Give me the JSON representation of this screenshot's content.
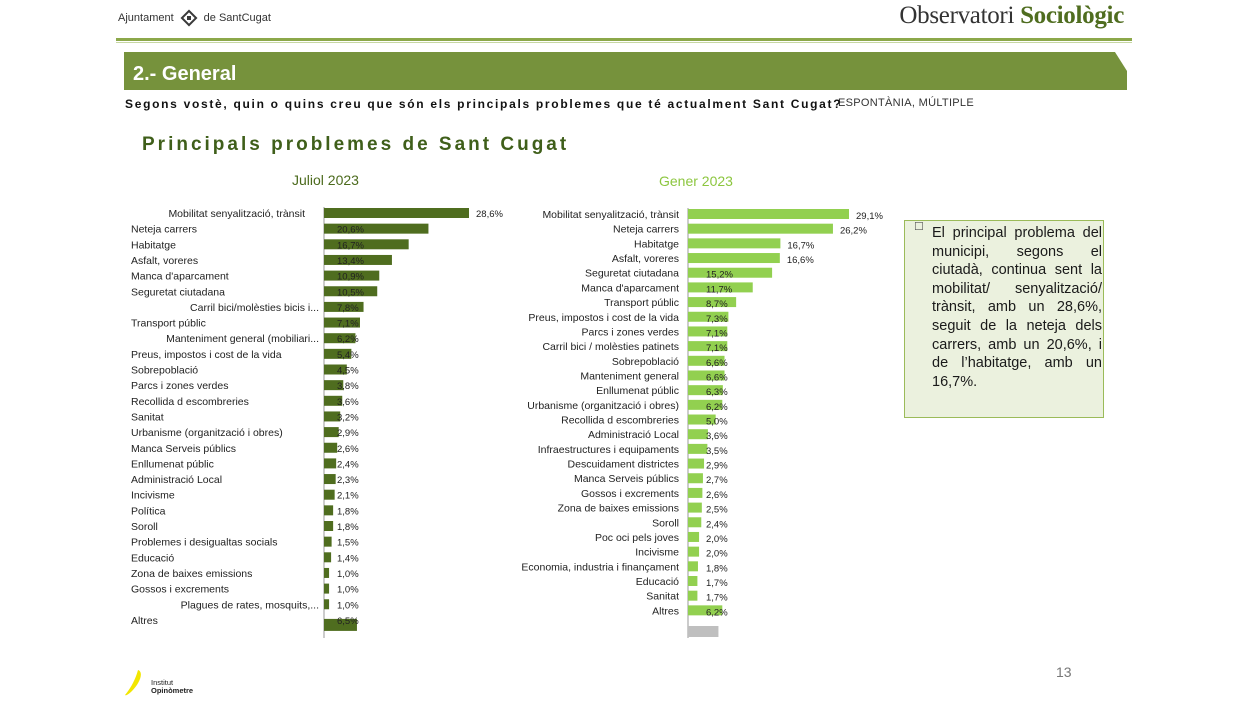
{
  "header": {
    "left_logo_text_1": "Ajuntament",
    "left_logo_text_2": "de SantCugat",
    "brand_light": "Observatori",
    "brand_bold": "Sociològic"
  },
  "section_title": "2.- General",
  "question": "Segons vostè, quin o quins creu que són els principals problemes que té actualment Sant Cugat?",
  "question_type": "ESPONTÀNIA, MÚLTIPLE",
  "chart_title": "Principals problemes de Sant Cugat",
  "note": "El principal problema del municipi, segons el ciutadà, continua sent la mobilitat/ senyalització/ trànsit, amb un 28,6%, seguit de la neteja dels carrers, amb un 20,6%, i de l’habitatge, amb un 16,7%.",
  "page_number": "13",
  "footer": {
    "line1": "Institut",
    "line2": "Opinòmetre"
  },
  "colors": {
    "accent": "#76923c",
    "july_bar": "#4f6d1f",
    "january_bar": "#92d050",
    "no_answer_bar": "#bfbfbf"
  },
  "chart_data": [
    {
      "type": "bar",
      "orientation": "horizontal",
      "title": "Juliol 2023",
      "categories": [
        "Mobilitat senyalització, trànsit",
        "Neteja carrers",
        "Habitatge",
        "Asfalt, voreres",
        "Manca d'aparcament",
        "Seguretat ciutadana",
        "Carril bici/molèsties bicis i...",
        "Transport públic",
        "Manteniment general (mobiliari...",
        "Preus, impostos i cost de la vida",
        "Sobrepoblació",
        "Parcs i zones verdes",
        "Recollida d escombreries",
        "Sanitat",
        "Urbanisme (organització i obres)",
        "Manca Serveis públics",
        "Enllumenat públic",
        "Administració Local",
        "Incivisme",
        "Política",
        "Soroll",
        "Problemes i desigualtas socials",
        "Educació",
        "Zona de baixes emissions",
        "Gossos i excrements",
        "Plagues de rates, mosquits,...",
        "Altres"
      ],
      "values": [
        28.6,
        20.6,
        16.7,
        13.4,
        10.9,
        10.5,
        7.8,
        7.1,
        6.2,
        5.4,
        4.5,
        3.8,
        3.6,
        3.2,
        2.9,
        2.6,
        2.4,
        2.3,
        2.1,
        1.8,
        1.8,
        1.5,
        1.4,
        1.0,
        1.0,
        1.0,
        6.5
      ],
      "labels": [
        "28,6%",
        "20,6%",
        "16,7%",
        "13,4%",
        "10,9%",
        "10,5%",
        "7,8%",
        "7,1%",
        "6,2%",
        "5,4%",
        "4,5%",
        "3,8%",
        "3,6%",
        "3,2%",
        "2,9%",
        "2,6%",
        "2,4%",
        "2,3%",
        "2,1%",
        "1,8%",
        "1,8%",
        "1,5%",
        "1,4%",
        "1,0%",
        "1,0%",
        "1,0%",
        "6,5%"
      ]
    },
    {
      "type": "bar",
      "orientation": "horizontal",
      "title": "Gener 2023",
      "categories": [
        "Mobilitat senyalització, trànsit",
        "Neteja carrers",
        "Habitatge",
        "Asfalt, voreres",
        "Seguretat ciutadana",
        "Manca d'aparcament",
        "Transport públic",
        "Preus, impostos i cost de la vida",
        "Parcs i zones verdes",
        "Carril bici / molèsties patinets",
        "Sobrepoblació",
        "Manteniment general",
        "Enllumenat públic",
        "Urbanisme (organització i obres)",
        "Recollida d escombreries",
        "Administració Local",
        "Infraestructures i equipaments",
        "Descuidament districtes",
        "Manca Serveis públics",
        "Gossos i excrements",
        "Zona de baixes emissions",
        "Soroll",
        "Poc oci pels joves",
        "Incivisme",
        "Economia, industria i finançament",
        "Educació",
        "Sanitat",
        "Altres"
      ],
      "values": [
        29.1,
        26.2,
        16.7,
        16.6,
        15.2,
        11.7,
        8.7,
        7.3,
        7.1,
        7.1,
        6.6,
        6.6,
        6.3,
        6.2,
        5.0,
        3.6,
        3.5,
        2.9,
        2.7,
        2.6,
        2.5,
        2.4,
        2.0,
        2.0,
        1.8,
        1.7,
        1.7,
        6.2
      ],
      "labels": [
        "29,1%",
        "26,2%",
        "16,7%",
        "16,6%",
        "15,2%",
        "11,7%",
        "8,7%",
        "7,3%",
        "7,1%",
        "7,1%",
        "6,6%",
        "6,6%",
        "6,3%",
        "6,2%",
        "5,0%",
        "3,6%",
        "3,5%",
        "2,9%",
        "2,7%",
        "2,6%",
        "2,5%",
        "2,4%",
        "2,0%",
        "2,0%",
        "1,8%",
        "1,7%",
        "1,7%",
        "6,2%"
      ],
      "extra_bar_value": 5.5
    }
  ]
}
